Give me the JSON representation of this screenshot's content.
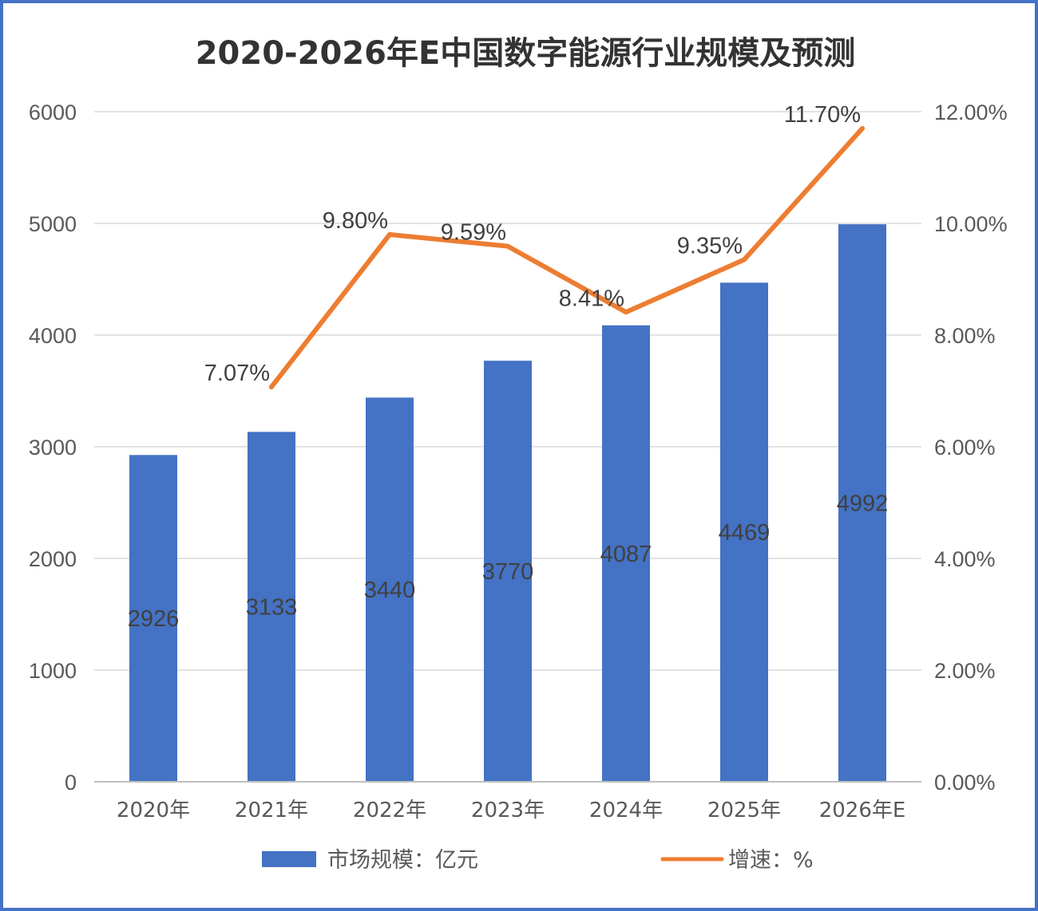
{
  "chart_data": {
    "type": "bar",
    "title": "2020-2026年E中国数字能源行业规模及预测",
    "categories": [
      "2020年",
      "2021年",
      "2022年",
      "2023年",
      "2024年",
      "2025年",
      "2026年E"
    ],
    "series": [
      {
        "name": "市场规模：亿元",
        "type": "bar",
        "axis": "left",
        "values": [
          2926,
          3133,
          3440,
          3770,
          4087,
          4469,
          4992
        ],
        "labels": [
          "2926",
          "3133",
          "3440",
          "3770",
          "4087",
          "4469",
          "4992"
        ],
        "color": "#4472c4"
      },
      {
        "name": "增速：%",
        "type": "line",
        "axis": "right",
        "values": [
          null,
          7.07,
          9.8,
          9.59,
          8.41,
          9.35,
          11.7
        ],
        "labels": [
          "",
          "7.07%",
          "9.80%",
          "9.59%",
          "8.41%",
          "9.35%",
          "11.70%"
        ],
        "color": "#ed7d31"
      }
    ],
    "y_left": {
      "ylim": [
        0,
        6000
      ],
      "ticks": [
        "0",
        "1000",
        "2000",
        "3000",
        "4000",
        "5000",
        "6000"
      ]
    },
    "y_right": {
      "ylim": [
        0,
        12
      ],
      "ticks": [
        "0.00%",
        "2.00%",
        "4.00%",
        "6.00%",
        "8.00%",
        "10.00%",
        "12.00%"
      ]
    },
    "grid": true,
    "legend": "bottom",
    "frame_color": "#4472c4",
    "grid_color": "#d9d9d9"
  }
}
